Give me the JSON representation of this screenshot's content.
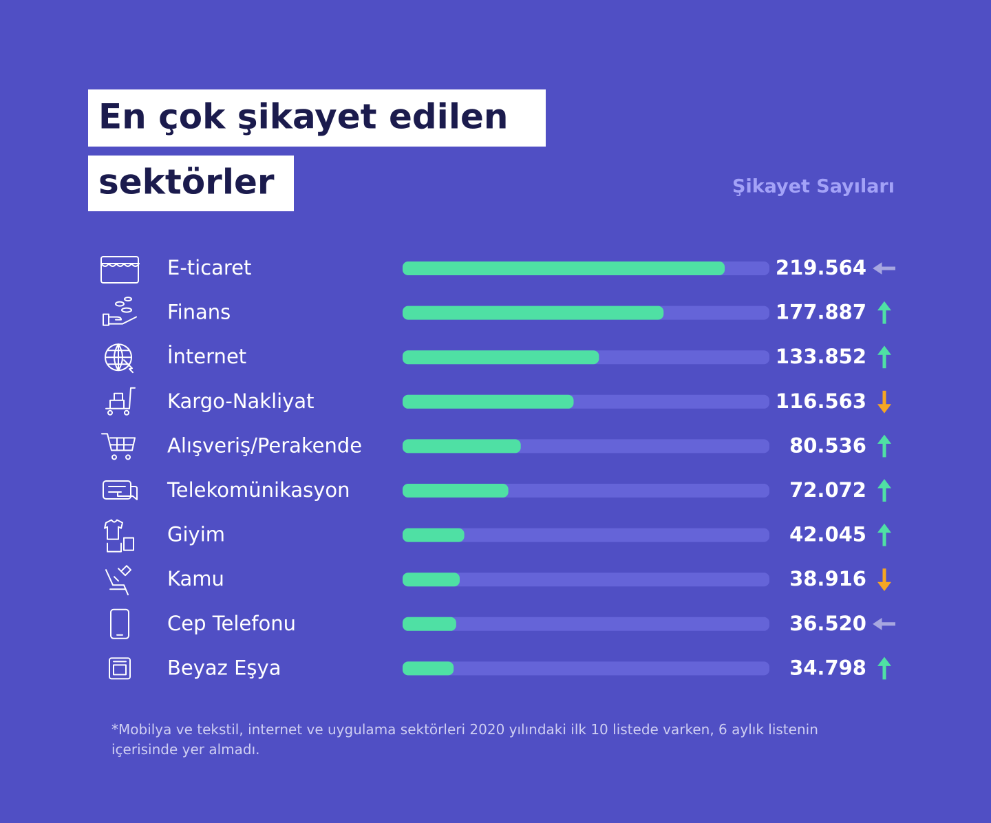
{
  "chart_data": {
    "type": "bar",
    "title": [
      "En çok şikayet edilen",
      "sektörler"
    ],
    "subtitle": "Şikayet Sayıları",
    "categories": [
      "E-ticaret",
      "Finans",
      "İnternet",
      "Kargo-Nakliyat",
      "Alışveriş/Perakende",
      "Telekomünikasyon",
      "Giyim",
      "Kamu",
      "Cep Telefonu",
      "Beyaz Eşya"
    ],
    "values": [
      219564,
      177887,
      133852,
      116563,
      80536,
      72072,
      42045,
      38916,
      36520,
      34798
    ],
    "value_labels": [
      "219.564",
      "177.887",
      "133.852",
      "116.563",
      "80.536",
      "72.072",
      "42.045",
      "38.916",
      "36.520",
      "34.798"
    ],
    "trends": [
      "same",
      "up",
      "up",
      "down",
      "up",
      "up",
      "up",
      "down",
      "same",
      "up"
    ],
    "trend_colors": {
      "same": "#a7a7e0",
      "up": "#4fe0a4",
      "down": "#f5a623"
    },
    "color": "#4fe0a4",
    "track_color": "#6564d8",
    "xlim": [
      0,
      250000
    ],
    "footnote": "*Mobilya ve tekstil, internet ve uygulama sektörleri 2020 yılındaki ilk 10 listede varken, 6 aylık listenin içerisinde yer almadı."
  }
}
